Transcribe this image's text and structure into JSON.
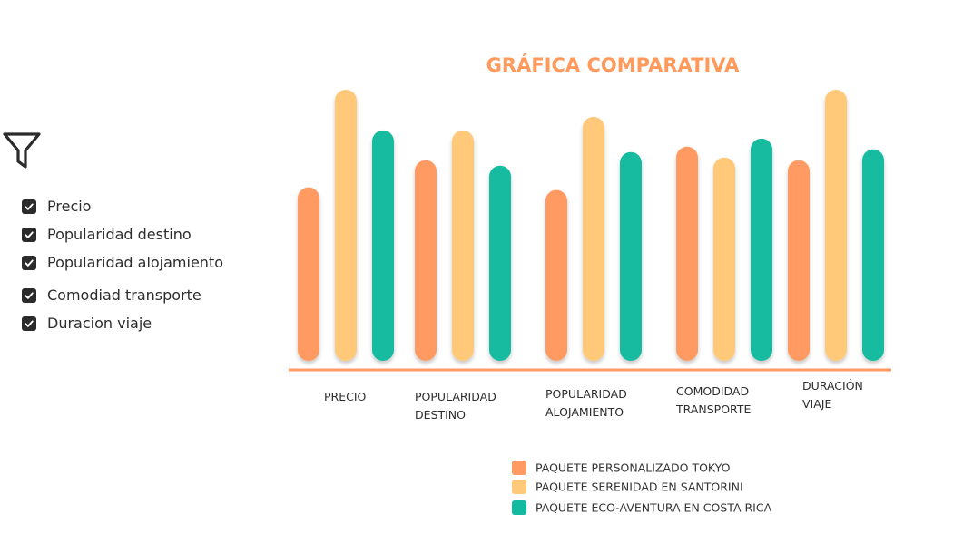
{
  "filters": {
    "items": [
      {
        "label": "Precio",
        "checked": true
      },
      {
        "label": "Popularidad destino",
        "checked": true
      },
      {
        "label": "Popularidad alojamiento",
        "checked": true
      },
      {
        "label": "Comodiad transporte",
        "checked": true
      },
      {
        "label": "Duracion viaje",
        "checked": true
      }
    ]
  },
  "chart_data": {
    "type": "bar",
    "title": "GRÁFICA COMPARATIVA",
    "title_color": "#FF9A5C",
    "categories": [
      [
        "PRECIO"
      ],
      [
        "POPULARIDAD",
        "DESTINO"
      ],
      [
        "POPULARIDAD",
        "ALOJAMIENTO"
      ],
      [
        "COMODIDAD",
        "TRANSPORTE"
      ],
      [
        "DURACIÓN",
        "VIAJE"
      ]
    ],
    "ylim": [
      0,
      100
    ],
    "grid": false,
    "legend_position": "bottom-center",
    "series": [
      {
        "name": "PAQUETE PERSONALIZADO TOKYO",
        "color": "#FF9A62",
        "values": [
          64,
          74,
          63,
          79,
          74
        ]
      },
      {
        "name": "PAQUETE SERENIDAD EN SANTORINI",
        "color": "#FFC979",
        "values": [
          100,
          85,
          90,
          75,
          100
        ]
      },
      {
        "name": "PAQUETE ECO-AVENTURA EN COSTA RICA",
        "color": "#12BBA0",
        "values": [
          85,
          72,
          77,
          82,
          78
        ]
      }
    ],
    "axis_color": "#FF9A62"
  }
}
